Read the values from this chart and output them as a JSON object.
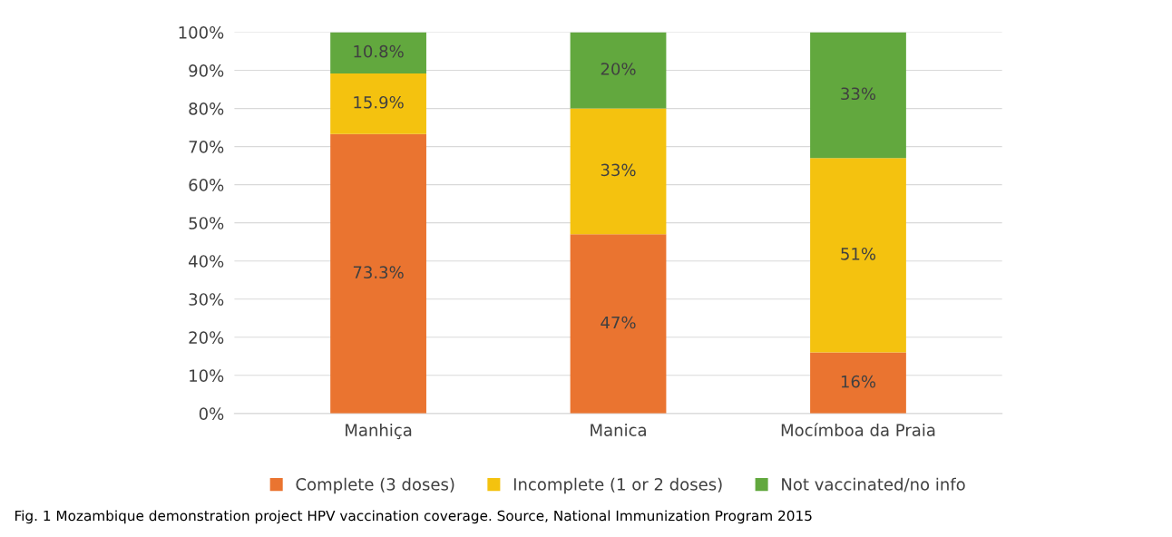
{
  "chart_data": {
    "type": "bar",
    "stacked": true,
    "categories": [
      "Manhiça",
      "Manica",
      "Mocímboa da Praia"
    ],
    "series": [
      {
        "name": "Complete (3 doses)",
        "color": "#ea7430",
        "values": [
          73.3,
          47,
          16
        ],
        "value_labels": [
          "73.3%",
          "47%",
          "16%"
        ]
      },
      {
        "name": "Incomplete (1 or 2 doses)",
        "color": "#f4c20f",
        "values": [
          15.9,
          33,
          51
        ],
        "value_labels": [
          "15.9%",
          "33%",
          "51%"
        ]
      },
      {
        "name": "Not vaccinated/no info",
        "color": "#62a83e",
        "values": [
          10.8,
          20,
          33
        ],
        "value_labels": [
          "10.8%",
          "20%",
          "33%"
        ]
      }
    ],
    "ylim": [
      0,
      100
    ],
    "yticks": [
      {
        "value": 0,
        "label": "0%"
      },
      {
        "value": 10,
        "label": "10%"
      },
      {
        "value": 20,
        "label": "20%"
      },
      {
        "value": 30,
        "label": "30%"
      },
      {
        "value": 40,
        "label": "40%"
      },
      {
        "value": 50,
        "label": "50%"
      },
      {
        "value": 60,
        "label": "60%"
      },
      {
        "value": 70,
        "label": "70%"
      },
      {
        "value": 80,
        "label": "80%"
      },
      {
        "value": 90,
        "label": "90%"
      },
      {
        "value": 100,
        "label": "100%"
      }
    ],
    "grid": "y",
    "legend": "bottom",
    "annotations": [
      "Fig. 1 Mozambique demonstration project HPV vaccination coverage. Source, National Immunization Program 2015"
    ]
  }
}
